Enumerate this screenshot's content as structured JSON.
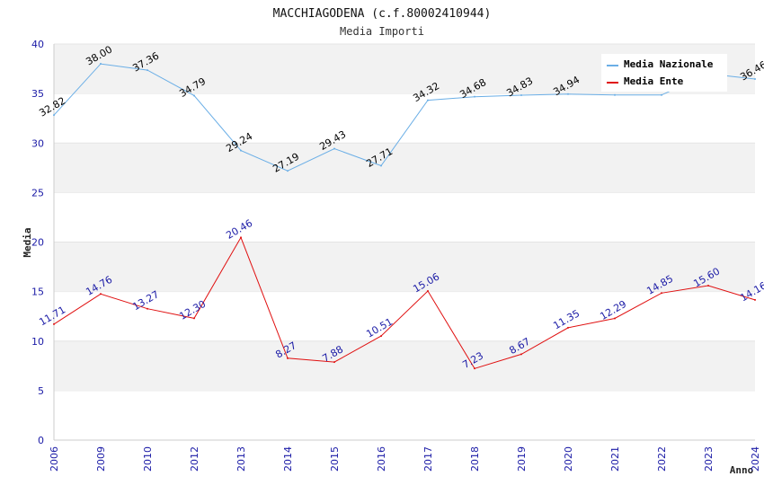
{
  "chart_data": {
    "type": "line",
    "title": "MACCHIAGODENA (c.f.80002410944)",
    "subtitle": "Media Importi",
    "xlabel": "Anno",
    "ylabel": "Media",
    "ylim": [
      0,
      40
    ],
    "yticks": [
      0,
      5,
      10,
      15,
      20,
      25,
      30,
      35,
      40
    ],
    "categories": [
      "2006",
      "2009",
      "2010",
      "2012",
      "2013",
      "2014",
      "2015",
      "2016",
      "2017",
      "2018",
      "2019",
      "2020",
      "2021",
      "2022",
      "2023",
      "2024"
    ],
    "series": [
      {
        "name": "Media Nazionale",
        "color": "#6aaee6",
        "label_color": "#000000",
        "values": [
          32.82,
          38.0,
          37.36,
          34.79,
          29.24,
          27.19,
          29.43,
          27.71,
          34.32,
          34.68,
          34.83,
          34.94,
          34.85,
          34.85,
          37.0,
          36.46
        ],
        "labels": [
          "32.82",
          "38.00",
          "37.36",
          "34.79",
          "29.24",
          "27.19",
          "29.43",
          "27.71",
          "34.32",
          "34.68",
          "34.83",
          "34.94",
          "",
          "",
          "",
          "36.46"
        ]
      },
      {
        "name": "Media Ente",
        "color": "#e01010",
        "label_color": "#1a1aa6",
        "values": [
          11.71,
          14.76,
          13.27,
          12.3,
          20.46,
          8.27,
          7.88,
          10.51,
          15.06,
          7.23,
          8.67,
          11.35,
          12.29,
          14.85,
          15.6,
          14.16
        ],
        "labels": [
          "11.71",
          "14.76",
          "13.27",
          "12.30",
          "20.46",
          "8.27",
          "7.88",
          "10.51",
          "15.06",
          "7.23",
          "8.67",
          "11.35",
          "12.29",
          "14.85",
          "15.60",
          "14.16"
        ]
      }
    ],
    "grid": true,
    "legend_position": "top-right"
  }
}
